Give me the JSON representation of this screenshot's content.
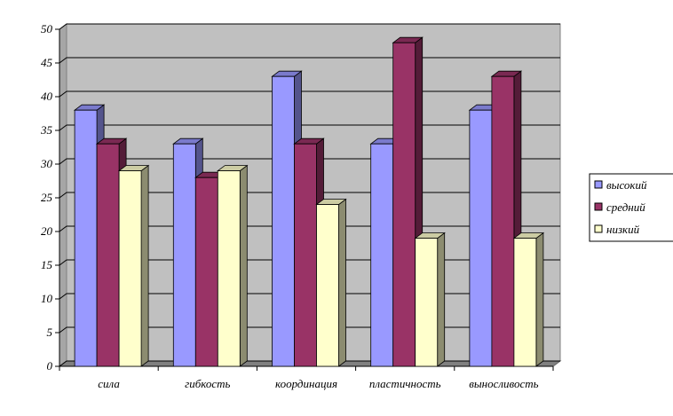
{
  "chart_data": {
    "type": "bar",
    "categories": [
      "сила",
      "гибкость",
      "координация",
      "пластичность",
      "выносливость"
    ],
    "series": [
      {
        "name": "высокий",
        "values": [
          38,
          33,
          43,
          33,
          38
        ]
      },
      {
        "name": "средний",
        "values": [
          33,
          28,
          33,
          48,
          43
        ]
      },
      {
        "name": "низкий",
        "values": [
          29,
          29,
          24,
          19,
          19
        ]
      }
    ],
    "colors": {
      "высокий": "#9999ff",
      "средний": "#993366",
      "низкий": "#ffffcc",
      "wall": "#c0c0c0",
      "floor": "#808080"
    },
    "ylim": [
      0,
      50
    ],
    "yticks": [
      0,
      5,
      10,
      15,
      20,
      25,
      30,
      35,
      40,
      45,
      50
    ],
    "grid": true,
    "legend": "right",
    "style": "3d-clustered-column"
  }
}
